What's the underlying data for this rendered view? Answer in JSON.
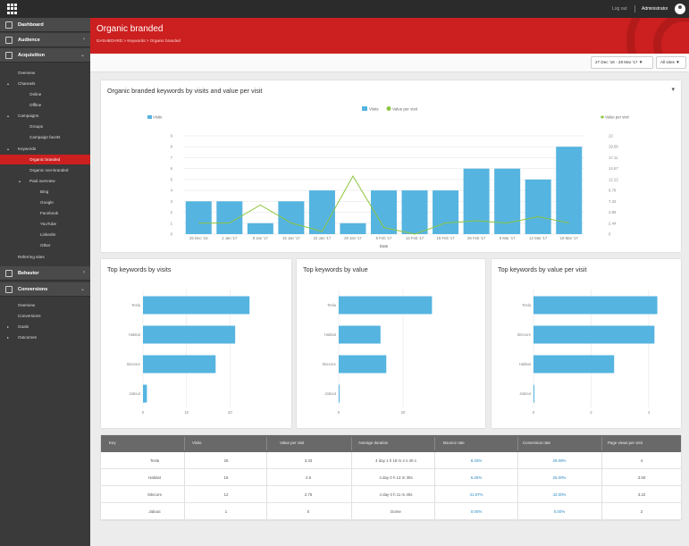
{
  "topbar": {
    "logout": "Log out",
    "user": "Administrator"
  },
  "sidebar": {
    "sections": [
      {
        "label": "Dashboard",
        "icon": "monitor-icon",
        "chevron": ""
      },
      {
        "label": "Audience",
        "icon": "people-icon",
        "chevron": "›"
      },
      {
        "label": "Acquisition",
        "icon": "network-icon",
        "chevron": "⌄"
      },
      {
        "label": "Behavior",
        "icon": "signpost-icon",
        "chevron": "›"
      },
      {
        "label": "Conversions",
        "icon": "target-icon",
        "chevron": "⌄"
      }
    ],
    "acquisition_items": [
      {
        "label": "Overview"
      },
      {
        "label": "Channels",
        "arrow": "▴"
      },
      {
        "label": "Online"
      },
      {
        "label": "Offline"
      },
      {
        "label": "Campaigns",
        "arrow": "▴"
      },
      {
        "label": "Groups"
      },
      {
        "label": "Campaign facets"
      },
      {
        "label": "Keywords",
        "arrow": "▴"
      },
      {
        "label": "Organic branded",
        "active": true
      },
      {
        "label": "Organic non-branded"
      },
      {
        "label": "Paid overview",
        "arrow": "▴"
      },
      {
        "label": "Bing"
      },
      {
        "label": "Google"
      },
      {
        "label": "Facebook"
      },
      {
        "label": "YouTube"
      },
      {
        "label": "LinkedIn"
      },
      {
        "label": "Other"
      },
      {
        "label": "Referring sites"
      }
    ],
    "conversion_items": [
      {
        "label": "Overview"
      },
      {
        "label": "Conversions"
      },
      {
        "label": "Goals",
        "arrow": "▸"
      },
      {
        "label": "Outcomes",
        "arrow": "▸"
      }
    ]
  },
  "header": {
    "title": "Organic branded",
    "breadcrumb": "DASHBOARD  >  Keywords  >  Organic branded"
  },
  "filters": {
    "date_range": "27 Dec '16 - 28 Mar '17",
    "site": "All sites",
    "chevron": "▼"
  },
  "main_chart": {
    "title": "Organic branded keywords by visits and value per visit",
    "menu": "▾"
  },
  "bar_cards": [
    {
      "title": "Top keywords by visits"
    },
    {
      "title": "Top keywords by value"
    },
    {
      "title": "Top keywords by value per visit"
    }
  ],
  "chart_data": [
    {
      "type": "bar",
      "categories": [
        "25 Dec '16",
        "1 Jan '17",
        "8 Jan '17",
        "15 Jan '17",
        "22 Jan '17",
        "29 Jan '17",
        "5 Feb '17",
        "12 Feb '17",
        "19 Feb '17",
        "26 Feb '17",
        "5 Mar '17",
        "12 Mar '17",
        "19 Mar '17"
      ],
      "series": [
        {
          "name": "Visits",
          "type": "bar",
          "axis": "left",
          "color": "#55b4e0",
          "values": [
            3,
            3,
            1,
            3,
            4,
            1,
            4,
            4,
            4,
            6,
            6,
            5,
            8
          ]
        },
        {
          "name": "Value per visit",
          "type": "line",
          "axis": "right",
          "color": "#8dc63f",
          "values": [
            2.44,
            2.5,
            6.5,
            2.5,
            0.6,
            13.0,
            1.5,
            0,
            2.5,
            3.0,
            2.5,
            3.9,
            2.5
          ]
        }
      ],
      "legend": [
        "Visits",
        "Value per visit"
      ],
      "left_label": "Visits",
      "right_label": "Value per visit",
      "xlabel": "Date",
      "ylim": [
        0,
        9
      ],
      "y_ticks": [
        0,
        1,
        2,
        3,
        4,
        5,
        6,
        7,
        8,
        9
      ],
      "y2lim": [
        0,
        22
      ],
      "y2_ticks": [
        "0",
        "2.44",
        "4.89",
        "7.33",
        "9.78",
        "12.22",
        "14.67",
        "17.11",
        "19.56",
        "22"
      ],
      "grid": true
    },
    {
      "type": "bar",
      "orientation": "horizontal",
      "color": "#55b4e0",
      "categories": [
        "Tesla",
        "Habitat",
        "Sitecore",
        "Jabout"
      ],
      "values": [
        24.5,
        21.2,
        16.7,
        0.9
      ],
      "xlim": [
        0,
        30
      ],
      "x_ticks": [
        0,
        10,
        20
      ],
      "grid": true
    },
    {
      "type": "bar",
      "orientation": "horizontal",
      "color": "#55b4e0",
      "categories": [
        "Tesla",
        "Habitat",
        "Sitecore",
        "Jabout"
      ],
      "values": [
        29,
        13,
        14.8,
        0.2
      ],
      "xlim": [
        0,
        40
      ],
      "x_ticks": [
        0,
        20
      ],
      "grid": true
    },
    {
      "type": "bar",
      "orientation": "horizontal",
      "color": "#55b4e0",
      "categories": [
        "Tesla",
        "Sitecore",
        "Habitat",
        "Jabout"
      ],
      "values": [
        4.3,
        4.2,
        2.8,
        0.02
      ],
      "xlim": [
        0,
        4.5
      ],
      "x_ticks": [
        0,
        2,
        4
      ],
      "grid": true
    }
  ],
  "table": {
    "headers": [
      "Key",
      "Visits",
      "Value per visit",
      "Average duration",
      "Bounce rate",
      "Conversion rate",
      "Page views per visit"
    ],
    "rows": [
      [
        "Tesla",
        "25",
        "3.33",
        "4 day 1 h 18 m 4 s 40 s",
        "8.33%",
        "29.09%",
        "4"
      ],
      [
        "Habitat",
        "16",
        "2.5",
        "4 day 0 h 13 m 30s",
        "6.25%",
        "25.00%",
        "3.50"
      ],
      [
        "Sitecore",
        "12",
        "2.75",
        "4 day 0 h 11 m 40s",
        "41.67%",
        "42.00%",
        "3.22"
      ],
      [
        "Jabout",
        "1",
        "0",
        "Dome",
        "0.00%",
        "0.00%",
        "2"
      ]
    ]
  }
}
